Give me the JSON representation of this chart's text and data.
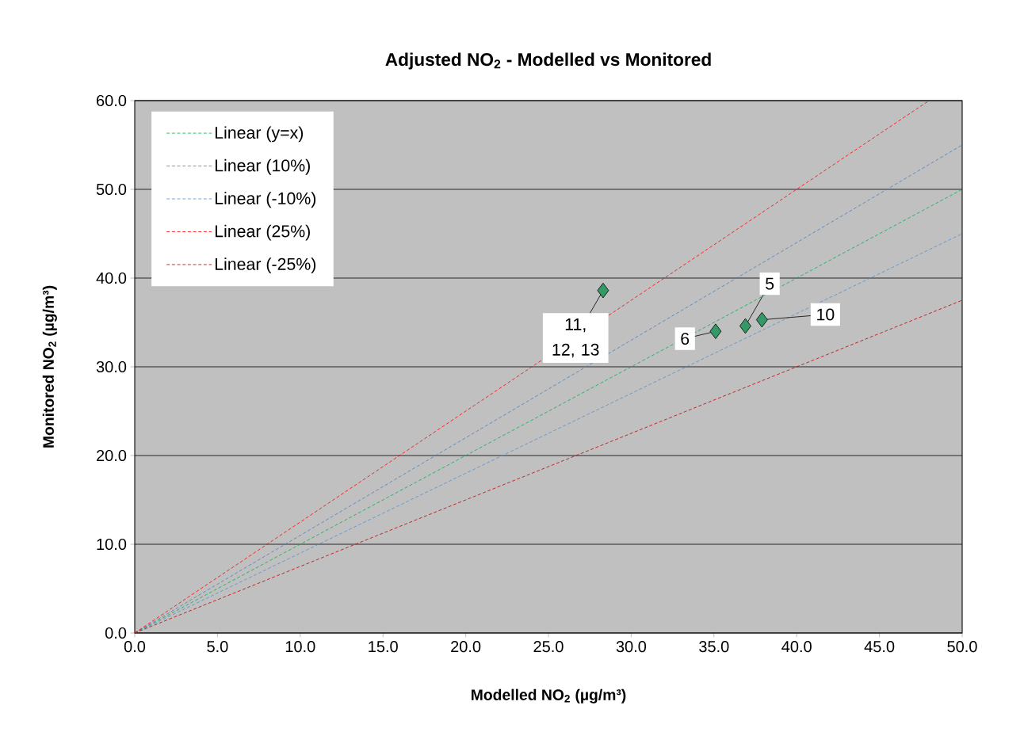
{
  "chart_data": {
    "type": "scatter",
    "title": "Adjusted NO$_{2}$ - Modelled vs Monitored",
    "xlabel": "Modelled NO$_{2}$ (µg/m³)",
    "ylabel": "Monitored  NO$_{2}$ (µg/m³)",
    "xlim": [
      0,
      50
    ],
    "ylim": [
      0,
      60
    ],
    "xticks": [
      {
        "value": 0,
        "label": "0.0"
      },
      {
        "value": 5,
        "label": "5.0"
      },
      {
        "value": 10,
        "label": "10.0"
      },
      {
        "value": 15,
        "label": "15.0"
      },
      {
        "value": 20,
        "label": "20.0"
      },
      {
        "value": 25,
        "label": "25.0"
      },
      {
        "value": 30,
        "label": "30.0"
      },
      {
        "value": 35,
        "label": "35.0"
      },
      {
        "value": 40,
        "label": "40.0"
      },
      {
        "value": 45,
        "label": "45.0"
      },
      {
        "value": 50,
        "label": "50.0"
      }
    ],
    "yticks": [
      {
        "value": 0,
        "label": "0.0"
      },
      {
        "value": 10,
        "label": "10.0"
      },
      {
        "value": 20,
        "label": "20.0"
      },
      {
        "value": 30,
        "label": "30.0"
      },
      {
        "value": 40,
        "label": "40.0"
      },
      {
        "value": 50,
        "label": "50.0"
      },
      {
        "value": 60,
        "label": "60.0"
      }
    ],
    "grid": "y",
    "legend": "top left",
    "series": [
      {
        "marker": "diamond",
        "color": "#339966",
        "x": [
          28.3,
          36.9,
          37.9,
          35.1
        ],
        "values": [
          38.6,
          34.6,
          35.3,
          34.0
        ]
      },
      {
        "type": "line",
        "name": "Linear (y=x)",
        "color": "#00b050",
        "line_style": "dashed",
        "marker": "none",
        "x": [
          0,
          50
        ],
        "values": [
          0,
          50
        ]
      },
      {
        "type": "line",
        "name": "Linear (10%)",
        "color": "#4a7ebb",
        "line_style": "dashed",
        "marker": "none",
        "x": [
          0,
          50
        ],
        "values": [
          0,
          55
        ]
      },
      {
        "type": "line",
        "name": "Linear (-10%)",
        "color": "#4f8fd0",
        "line_style": "dashed",
        "marker": "none",
        "x": [
          0,
          50
        ],
        "values": [
          0,
          45
        ]
      },
      {
        "type": "line",
        "name": "Linear (25%)",
        "color": "#ff0000",
        "line_style": "dashed",
        "marker": "none",
        "x": [
          0,
          48
        ],
        "values": [
          0,
          60
        ]
      },
      {
        "type": "line",
        "name": "Linear (-25%)",
        "color": "#c00000",
        "line_style": "dashed",
        "marker": "none",
        "x": [
          0,
          50
        ],
        "values": [
          0,
          37.5
        ]
      }
    ],
    "annotations": [
      {
        "text": "11, 12, 13",
        "x": 28.3,
        "y": 38.6
      },
      {
        "text": "5",
        "x": 36.9,
        "y": 34.6
      },
      {
        "text": "10",
        "x": 37.9,
        "y": 35.3
      },
      {
        "text": "6",
        "x": 35.1,
        "y": 34.0
      }
    ]
  }
}
